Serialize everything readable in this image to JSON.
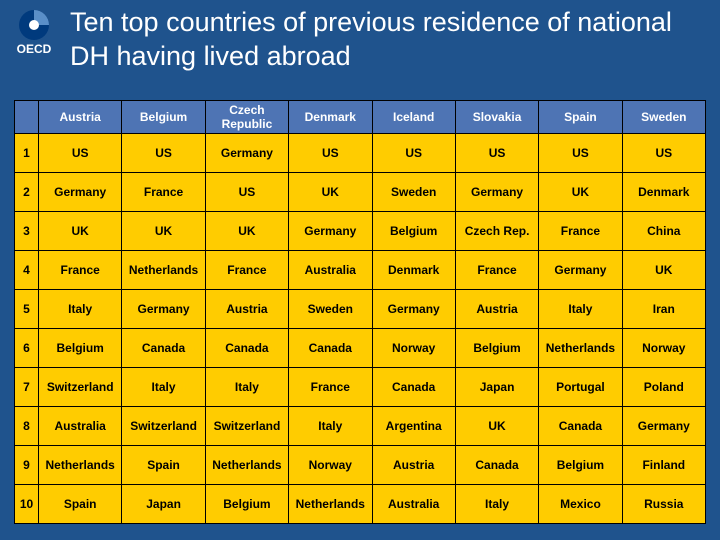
{
  "title": "Ten top countries of previous residence of national DH having lived abroad",
  "logo_text": "OECD",
  "colors": {
    "slide_bg": "#1f538d",
    "header_bg": "#4e74b4",
    "header_text": "#ffffff",
    "rank_bg": "#ffcc00",
    "cell_bg": "#ffcc00",
    "cell_text": "#000000",
    "border": "#000000",
    "title_text": "#ffffff",
    "logo_fill": "#003a7d",
    "logo_white": "#ffffff"
  },
  "table": {
    "headers": [
      "Austria",
      "Belgium",
      "Czech Republic",
      "Denmark",
      "Iceland",
      "Slovakia",
      "Spain",
      "Sweden"
    ],
    "ranks": [
      "1",
      "2",
      "3",
      "4",
      "5",
      "6",
      "7",
      "8",
      "9",
      "10"
    ],
    "rows": [
      [
        "US",
        "US",
        "Germany",
        "US",
        "US",
        "US",
        "US",
        "US"
      ],
      [
        "Germany",
        "France",
        "US",
        "UK",
        "Sweden",
        "Germany",
        "UK",
        "Denmark"
      ],
      [
        "UK",
        "UK",
        "UK",
        "Germany",
        "Belgium",
        "Czech Rep.",
        "France",
        "China"
      ],
      [
        "France",
        "Netherlands",
        "France",
        "Australia",
        "Denmark",
        "France",
        "Germany",
        "UK"
      ],
      [
        "Italy",
        "Germany",
        "Austria",
        "Sweden",
        "Germany",
        "Austria",
        "Italy",
        "Iran"
      ],
      [
        "Belgium",
        "Canada",
        "Canada",
        "Canada",
        "Norway",
        "Belgium",
        "Netherlands",
        "Norway"
      ],
      [
        "Switzerland",
        "Italy",
        "Italy",
        "France",
        "Canada",
        "Japan",
        "Portugal",
        "Poland"
      ],
      [
        "Australia",
        "Switzerland",
        "Switzerland",
        "Italy",
        "Argentina",
        "UK",
        "Canada",
        "Germany"
      ],
      [
        "Netherlands",
        "Spain",
        "Netherlands",
        "Norway",
        "Austria",
        "Canada",
        "Belgium",
        "Finland"
      ],
      [
        "Spain",
        "Japan",
        "Belgium",
        "Netherlands",
        "Australia",
        "Italy",
        "Mexico",
        "Russia"
      ]
    ]
  }
}
